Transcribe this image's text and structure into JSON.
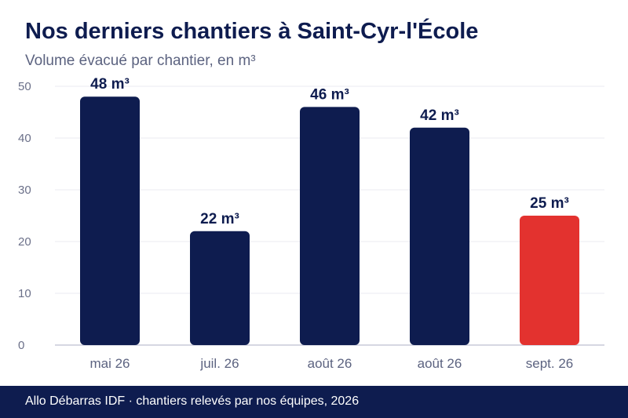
{
  "header": {
    "title": "Nos derniers chantiers à Saint-Cyr-l'École",
    "subtitle": "Volume évacué par chantier, en m³"
  },
  "footer": {
    "text": "Allo Débarras IDF · chantiers relevés par nos équipes, 2026"
  },
  "colors": {
    "bar": "#0e1c4f",
    "highlight": "#e3322f",
    "grid": "#ebebf0",
    "axis": "#c9cad8"
  },
  "chart_data": {
    "type": "bar",
    "categories": [
      "mai 26",
      "juil. 26",
      "août 26",
      "août 26",
      "sept. 26"
    ],
    "values": [
      48,
      22,
      46,
      42,
      25
    ],
    "value_labels": [
      "48 m³",
      "22 m³",
      "46 m³",
      "42 m³",
      "25 m³"
    ],
    "highlight_index": 4,
    "ylim": [
      0,
      50
    ],
    "yticks": [
      0,
      10,
      20,
      30,
      40,
      50
    ],
    "grid": true,
    "legend": "none"
  }
}
